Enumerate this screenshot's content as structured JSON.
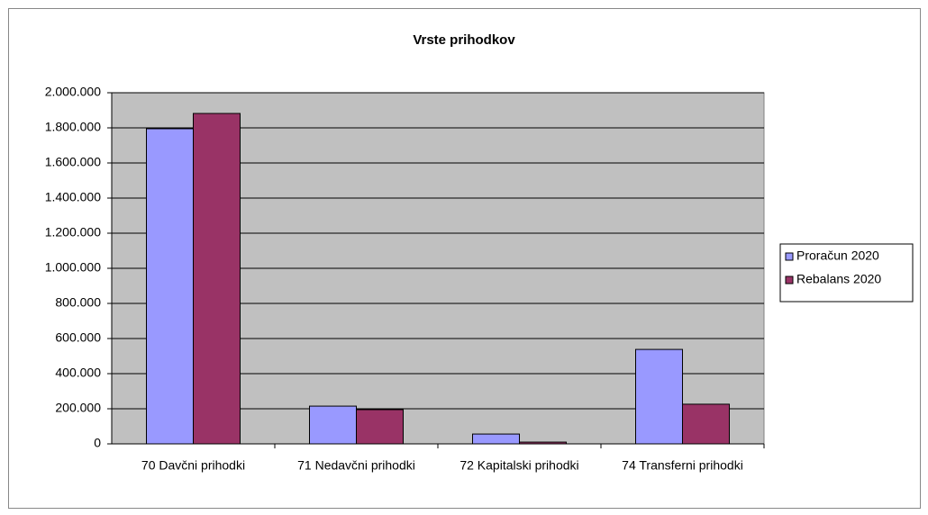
{
  "chart_data": {
    "type": "bar",
    "title": "Vrste prihodkov",
    "categories": [
      "70 Davčni prihodki",
      "71 Nedavčni prihodki",
      "72 Kapitalski prihodki",
      "74 Transferni prihodki"
    ],
    "series": [
      {
        "name": "Proračun 2020",
        "color": "#9999ff",
        "values": [
          1795000,
          215000,
          56000,
          538000
        ]
      },
      {
        "name": "Rebalans 2020",
        "color": "#993366",
        "values": [
          1882000,
          195000,
          10000,
          226000
        ]
      }
    ],
    "ylim": [
      0,
      2000000
    ],
    "yticks": [
      0,
      {
        "value": 200000,
        "label": "200.000"
      },
      {
        "value": 400000,
        "label": "400.000"
      },
      {
        "value": 600000,
        "label": "600.000"
      },
      {
        "value": 800000,
        "label": "800.000"
      },
      {
        "value": 1000000,
        "label": "1.000.000"
      },
      {
        "value": 1200000,
        "label": "1.200.000"
      },
      {
        "value": 1400000,
        "label": "1.400.000"
      },
      {
        "value": 1600000,
        "label": "1.600.000"
      },
      {
        "value": 1800000,
        "label": "1.800.000"
      },
      {
        "value": 2000000,
        "label": "2.000.000"
      }
    ],
    "grid": true,
    "legend": "right"
  }
}
